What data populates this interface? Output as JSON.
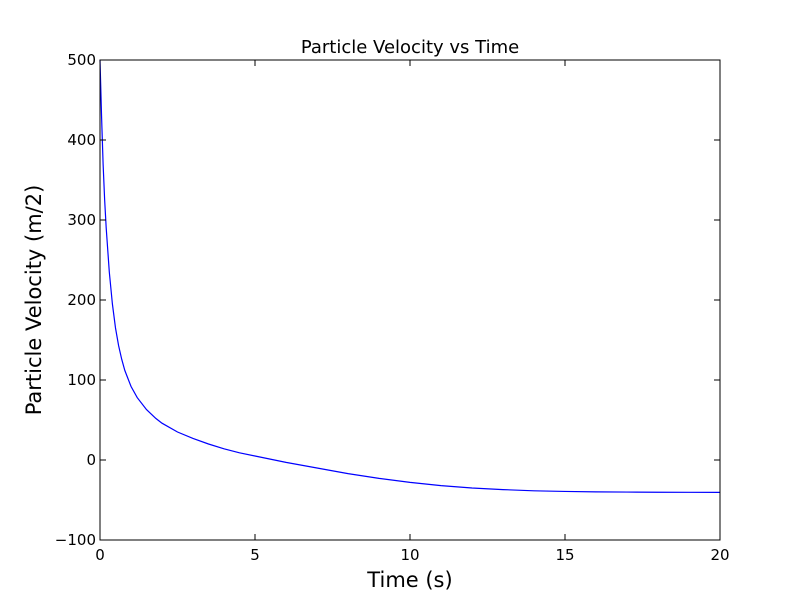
{
  "chart_data": {
    "type": "line",
    "title": "Particle Velocity vs Time",
    "xlabel": "Time (s)",
    "ylabel": "Particle Velocity (m/2)",
    "xlim": [
      0,
      20
    ],
    "ylim": [
      -100,
      500
    ],
    "xticks": [
      0,
      5,
      10,
      15,
      20
    ],
    "yticks": [
      -100,
      0,
      100,
      200,
      300,
      400,
      500
    ],
    "xtick_labels": [
      "0",
      "5",
      "10",
      "15",
      "20"
    ],
    "ytick_labels": [
      "−100",
      "0",
      "100",
      "200",
      "300",
      "400",
      "500"
    ],
    "grid": false,
    "legend": "none",
    "series": [
      {
        "color": "#0000ff",
        "x": [
          0,
          0.05,
          0.1,
          0.15,
          0.2,
          0.3,
          0.4,
          0.5,
          0.6,
          0.7,
          0.8,
          1.0,
          1.2,
          1.5,
          1.8,
          2.0,
          2.5,
          3.0,
          3.5,
          4.0,
          4.5,
          5.0,
          6.0,
          7.0,
          8.0,
          9.0,
          10.0,
          11.0,
          12.0,
          13.0,
          14.0,
          15.0,
          16.0,
          17.0,
          18.0,
          19.0,
          20.0
        ],
        "y": [
          500,
          430,
          370,
          325,
          290,
          235,
          195,
          165,
          143,
          126,
          112,
          92,
          78,
          63,
          52,
          46,
          35,
          27,
          20,
          14,
          9,
          5,
          -3,
          -10,
          -17,
          -23,
          -28,
          -32,
          -35,
          -37,
          -38.5,
          -39.3,
          -39.8,
          -40.1,
          -40.3,
          -40.4,
          -40.5
        ]
      }
    ]
  }
}
